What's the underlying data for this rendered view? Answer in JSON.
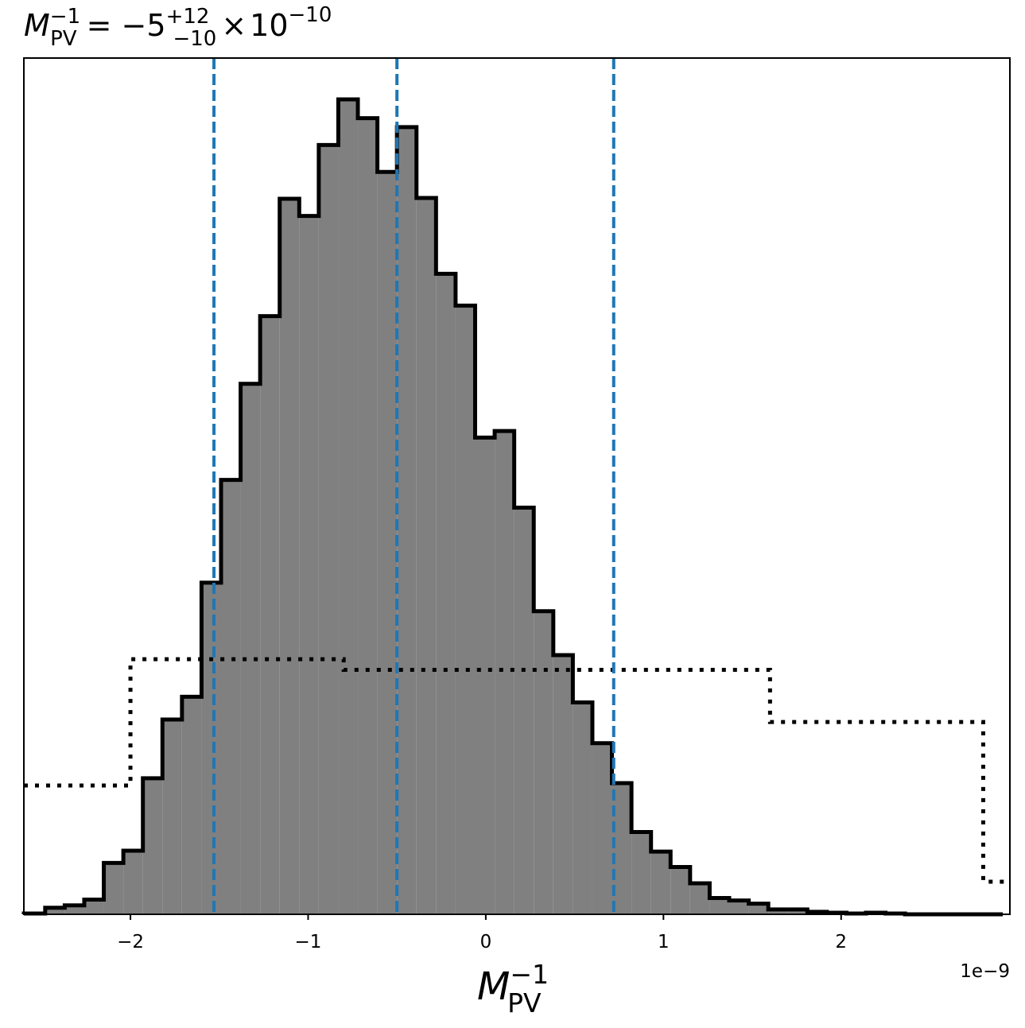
{
  "chart_data": {
    "type": "histogram",
    "title": {
      "symbol": "M",
      "subscript": "PV",
      "superscript": "−1",
      "equals": "=",
      "value": "−5",
      "err_plus": "+12",
      "err_minus": "−10",
      "times": "×",
      "base": "10",
      "exponent": "−10"
    },
    "xlabel": {
      "symbol": "M",
      "subscript": "PV",
      "superscript": "−1"
    },
    "x_offset_label": "1e−9",
    "xlim": [
      -2.6e-09,
      2.95e-09
    ],
    "ylim": [
      0,
      1.0
    ],
    "x_ticks": [
      {
        "value": -2e-09,
        "label": "−2"
      },
      {
        "value": -1e-09,
        "label": "−1"
      },
      {
        "value": 0,
        "label": "0"
      },
      {
        "value": 1e-09,
        "label": "1"
      },
      {
        "value": 2e-09,
        "label": "2"
      }
    ],
    "posterior": {
      "fill_color": "#808080",
      "edge_color": "#000000",
      "bin_edges": [
        -2.6e-09,
        -2.48e-09,
        -2.37e-09,
        -2.26e-09,
        -2.15e-09,
        -2.04e-09,
        -1.93e-09,
        -1.82e-09,
        -1.71e-09,
        -1.6e-09,
        -1.49e-09,
        -1.38e-09,
        -1.27e-09,
        -1.16e-09,
        -1.05e-09,
        -9.4e-10,
        -8.3e-10,
        -7.2e-10,
        -6.1e-10,
        -5e-10,
        -3.9e-10,
        -2.8e-10,
        -1.7e-10,
        -6e-11,
        5e-11,
        1.6e-10,
        2.7e-10,
        3.8e-10,
        4.9e-10,
        6e-10,
        7.1e-10,
        8.2e-10,
        9.3e-10,
        1.04e-09,
        1.15e-09,
        1.26e-09,
        1.37e-09,
        1.48e-09,
        1.59e-09,
        1.7e-09,
        1.81e-09,
        1.92e-09,
        2.03e-09,
        2.14e-09,
        2.25e-09,
        2.36e-09,
        2.47e-09,
        2.58e-09,
        2.69e-09,
        2.8e-09,
        2.91e-09
      ],
      "counts": [
        0.001,
        0.008,
        0.011,
        0.018,
        0.063,
        0.078,
        0.167,
        0.239,
        0.267,
        0.407,
        0.533,
        0.651,
        0.734,
        0.878,
        0.857,
        0.944,
        1.0,
        0.977,
        0.911,
        0.966,
        0.879,
        0.786,
        0.747,
        0.585,
        0.593,
        0.499,
        0.372,
        0.318,
        0.26,
        0.21,
        0.161,
        0.101,
        0.077,
        0.058,
        0.038,
        0.02,
        0.017,
        0.013,
        0.006,
        0.006,
        0.003,
        0.002,
        0.001,
        0.002,
        0.001,
        0.0,
        0.0,
        0.0,
        0.0,
        0.0
      ]
    },
    "prior": {
      "line_style": "dotted",
      "color": "#000000",
      "bin_edges": [
        -2.6e-09,
        -2e-09,
        -8e-10,
        1.6e-09,
        2.8e-09,
        2.95e-09
      ],
      "counts": [
        0.158,
        0.313,
        0.3,
        0.236,
        0.04
      ]
    },
    "markers": {
      "color": "#1f77b4",
      "line_style": "dashed",
      "values": [
        -1.53e-09,
        -5e-10,
        7.2e-10
      ]
    },
    "grid": false
  }
}
